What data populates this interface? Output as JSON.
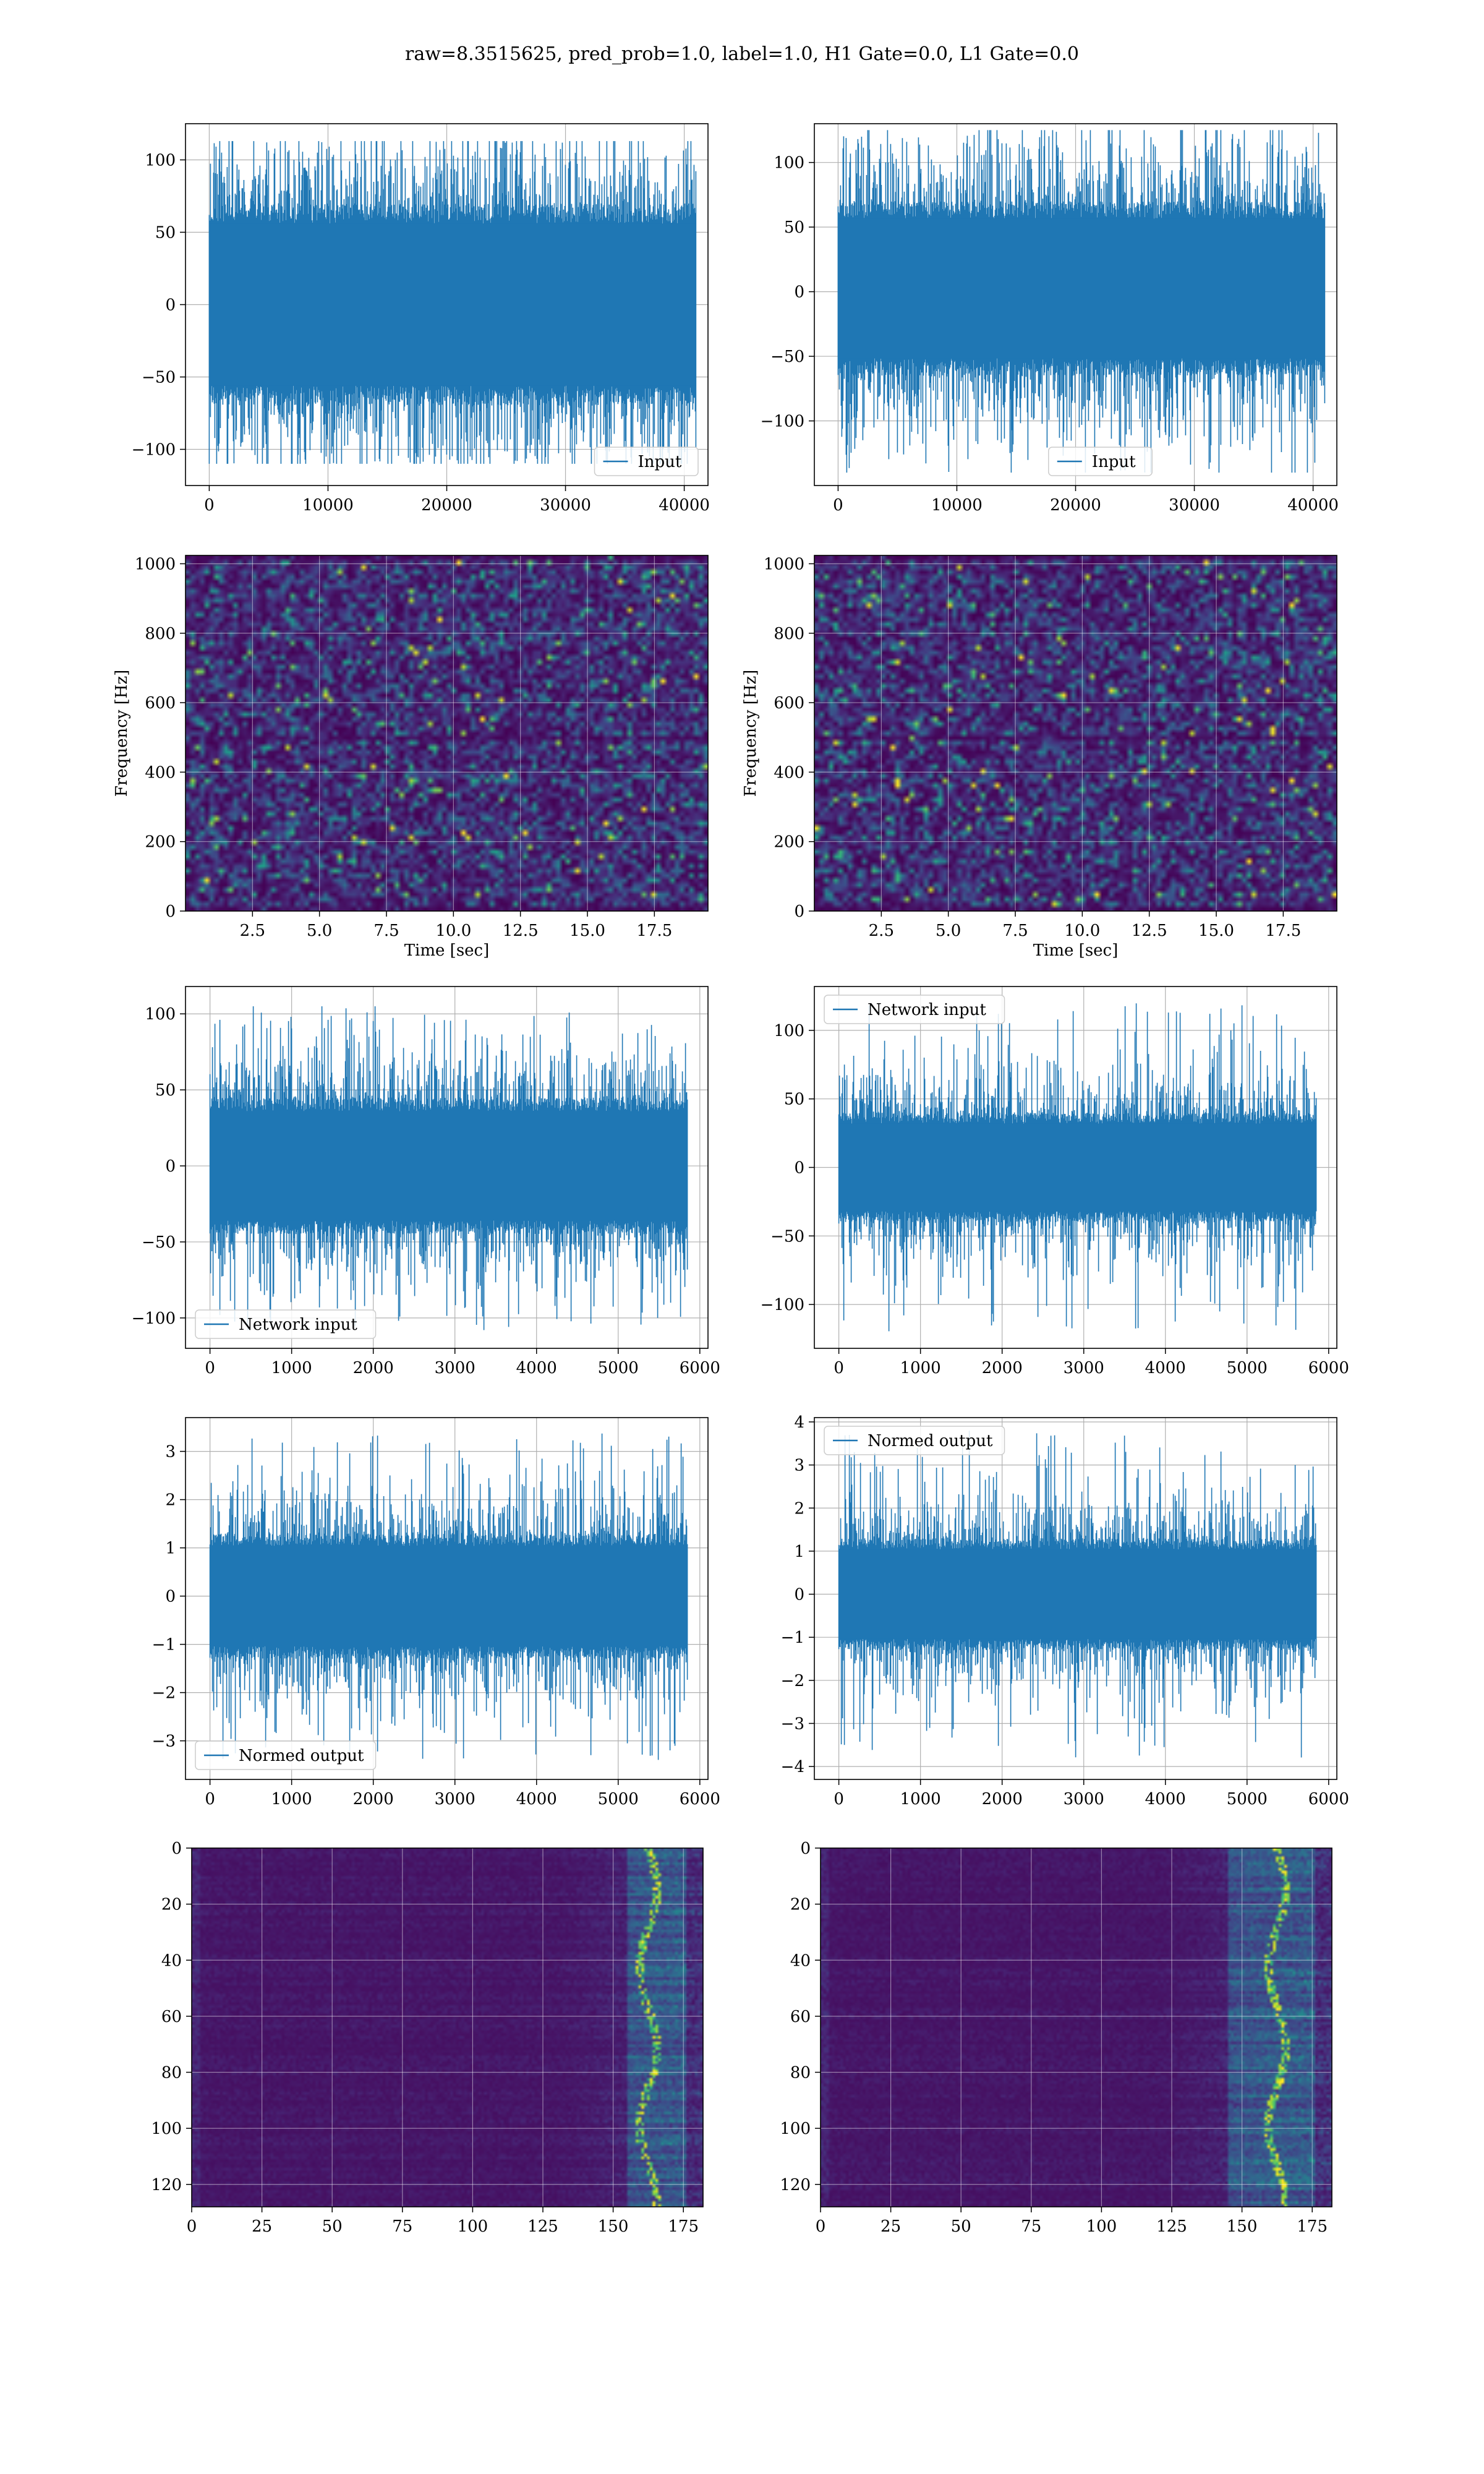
{
  "figure": {
    "suptitle": "raw=8.3515625, pred_prob=1.0, label=1.0, H1 Gate=0.0, L1 Gate=0.0"
  },
  "colors": {
    "line": "#1f77b4",
    "grid": "#b0b0b0",
    "axes": "#000000",
    "viridis_low": "#440154",
    "viridis_mid": "#31688e",
    "viridis_midhigh": "#35b779",
    "viridis_high": "#fde725"
  },
  "chart_data": [
    {
      "id": "input-h1",
      "type": "line",
      "row": 0,
      "col": 0,
      "xlim": [
        -2000,
        42000
      ],
      "ylim": [
        -125,
        125
      ],
      "xticks": [
        0,
        10000,
        20000,
        30000,
        40000
      ],
      "yticks": [
        -100,
        -50,
        0,
        50,
        100
      ],
      "xlabel": "",
      "ylabel": "",
      "legend": {
        "label": "Input",
        "loc": "lower right"
      },
      "series": [
        {
          "name": "Input",
          "x_range": [
            0,
            40960
          ],
          "y_min": -110,
          "y_max": 113,
          "dense_band": [
            -70,
            70
          ]
        }
      ]
    },
    {
      "id": "input-l1",
      "type": "line",
      "row": 0,
      "col": 1,
      "xlim": [
        -2000,
        42000
      ],
      "ylim": [
        -150,
        130
      ],
      "xticks": [
        0,
        10000,
        20000,
        30000,
        40000
      ],
      "yticks": [
        -100,
        -50,
        0,
        50,
        100
      ],
      "xlabel": "",
      "ylabel": "",
      "legend": {
        "label": "Input",
        "loc": "lower center"
      },
      "series": [
        {
          "name": "Input",
          "x_range": [
            0,
            40960
          ],
          "y_min": -140,
          "y_max": 125,
          "dense_band": [
            -65,
            70
          ]
        }
      ]
    },
    {
      "id": "spectrogram-h1",
      "type": "heatmap",
      "row": 1,
      "col": 0,
      "xlim": [
        0,
        19.5
      ],
      "ylim": [
        0,
        1024
      ],
      "xticks": [
        2.5,
        5.0,
        7.5,
        10.0,
        12.5,
        15.0,
        17.5
      ],
      "xtick_labels": [
        "2.5",
        "5.0",
        "7.5",
        "10.0",
        "12.5",
        "15.0",
        "17.5"
      ],
      "yticks": [
        0,
        200,
        400,
        600,
        800,
        1000
      ],
      "xlabel": "Time [sec]",
      "ylabel": "Frequency [Hz]"
    },
    {
      "id": "spectrogram-l1",
      "type": "heatmap",
      "row": 1,
      "col": 1,
      "xlim": [
        0,
        19.5
      ],
      "ylim": [
        0,
        1024
      ],
      "xticks": [
        2.5,
        5.0,
        7.5,
        10.0,
        12.5,
        15.0,
        17.5
      ],
      "xtick_labels": [
        "2.5",
        "5.0",
        "7.5",
        "10.0",
        "12.5",
        "15.0",
        "17.5"
      ],
      "yticks": [
        0,
        200,
        400,
        600,
        800,
        1000
      ],
      "xlabel": "Time [sec]",
      "ylabel": "Frequency [Hz]"
    },
    {
      "id": "network-input-h1",
      "type": "line",
      "row": 2,
      "col": 0,
      "xlim": [
        -300,
        6100
      ],
      "ylim": [
        -120,
        118
      ],
      "xticks": [
        0,
        1000,
        2000,
        3000,
        4000,
        5000,
        6000
      ],
      "yticks": [
        -100,
        -50,
        0,
        50,
        100
      ],
      "xlabel": "",
      "ylabel": "",
      "legend": {
        "label": "Network input",
        "loc": "lower left"
      },
      "series": [
        {
          "name": "Network input",
          "x_range": [
            0,
            5850
          ],
          "y_min": -108,
          "y_max": 105,
          "dense_band": [
            -45,
            45
          ]
        }
      ]
    },
    {
      "id": "network-input-l1",
      "type": "line",
      "row": 2,
      "col": 1,
      "xlim": [
        -300,
        6100
      ],
      "ylim": [
        -132,
        132
      ],
      "xticks": [
        0,
        1000,
        2000,
        3000,
        4000,
        5000,
        6000
      ],
      "yticks": [
        -100,
        -50,
        0,
        50,
        100
      ],
      "xlabel": "",
      "ylabel": "",
      "legend": {
        "label": "Network input",
        "loc": "upper left"
      },
      "series": [
        {
          "name": "Network input",
          "x_range": [
            0,
            5850
          ],
          "y_min": -120,
          "y_max": 120,
          "dense_band": [
            -40,
            40
          ]
        }
      ]
    },
    {
      "id": "normed-output-h1",
      "type": "line",
      "row": 3,
      "col": 0,
      "xlim": [
        -300,
        6100
      ],
      "ylim": [
        -3.8,
        3.7
      ],
      "xticks": [
        0,
        1000,
        2000,
        3000,
        4000,
        5000,
        6000
      ],
      "yticks": [
        -3,
        -2,
        -1,
        0,
        1,
        2,
        3
      ],
      "xlabel": "",
      "ylabel": "",
      "legend": {
        "label": "Normed output",
        "loc": "lower left"
      },
      "series": [
        {
          "name": "Normed output",
          "x_range": [
            0,
            5850
          ],
          "y_min": -3.4,
          "y_max": 3.4,
          "dense_band": [
            -1.3,
            1.3
          ]
        }
      ]
    },
    {
      "id": "normed-output-l1",
      "type": "line",
      "row": 3,
      "col": 1,
      "xlim": [
        -300,
        6100
      ],
      "ylim": [
        -4.3,
        4.1
      ],
      "xticks": [
        0,
        1000,
        2000,
        3000,
        4000,
        5000,
        6000
      ],
      "yticks": [
        -4,
        -3,
        -2,
        -1,
        0,
        1,
        2,
        3,
        4
      ],
      "xlabel": "",
      "ylabel": "",
      "legend": {
        "label": "Normed output",
        "loc": "upper left"
      },
      "series": [
        {
          "name": "Normed output",
          "x_range": [
            0,
            5850
          ],
          "y_min": -3.8,
          "y_max": 3.8,
          "dense_band": [
            -1.3,
            1.3
          ]
        }
      ]
    },
    {
      "id": "feature-map-h1",
      "type": "heatmap",
      "row": 4,
      "col": 0,
      "xlim": [
        0,
        182
      ],
      "ylim": [
        128,
        0
      ],
      "xticks": [
        0,
        25,
        50,
        75,
        100,
        125,
        150,
        175
      ],
      "yticks": [
        0,
        20,
        40,
        60,
        80,
        100,
        120
      ],
      "xlabel": "",
      "ylabel": "",
      "bright_columns": [
        155,
        175
      ]
    },
    {
      "id": "feature-map-l1",
      "type": "heatmap",
      "row": 4,
      "col": 1,
      "xlim": [
        0,
        182
      ],
      "ylim": [
        128,
        0
      ],
      "xticks": [
        0,
        25,
        50,
        75,
        100,
        125,
        150,
        175
      ],
      "yticks": [
        0,
        20,
        40,
        60,
        80,
        100,
        120
      ],
      "xlabel": "",
      "ylabel": "",
      "bright_columns": [
        145,
        175
      ]
    }
  ]
}
